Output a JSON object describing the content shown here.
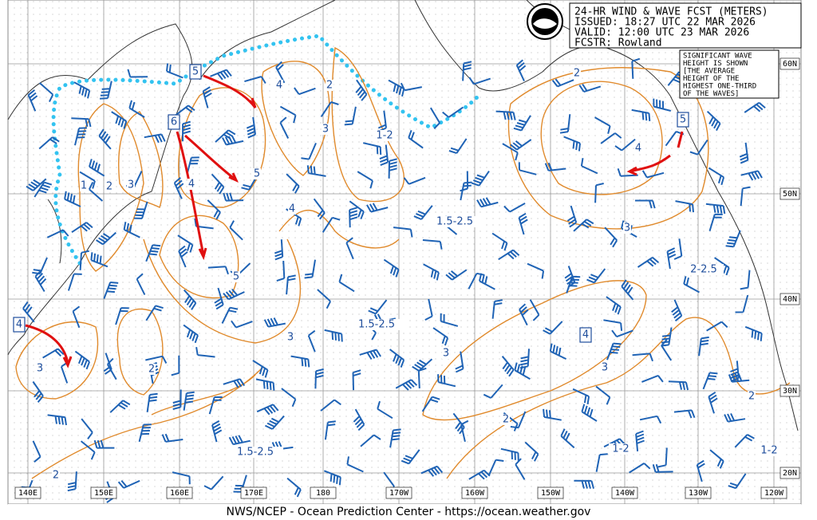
{
  "header": {
    "lines": [
      "24-HR WIND & WAVE FCST (METERS)",
      "ISSUED: 18:27 UTC 22 MAR 2026",
      "VALID: 12:00 UTC 23 MAR 2026",
      "FCSTR:  Rowland"
    ]
  },
  "note": {
    "lines": [
      "SIGNIFICANT WAVE",
      "HEIGHT IS SHOWN",
      "[THE AVERAGE",
      "HEIGHT OF THE",
      "HIGHEST ONE-THIRD",
      "OF THE WAVES]"
    ]
  },
  "latitude_labels": [
    "60N",
    "50N",
    "40N",
    "30N",
    "20N"
  ],
  "longitude_labels": [
    "140E",
    "150E",
    "160E",
    "170E",
    "180",
    "170W",
    "160W",
    "150W",
    "140W",
    "130W",
    "120W"
  ],
  "contour_labels": [
    "1",
    "2",
    "3",
    "4",
    "5",
    "4",
    "2",
    "3",
    "4",
    "5",
    "3",
    "2",
    "3",
    "2",
    "2",
    "4",
    "3",
    "3",
    "3",
    "2",
    "2"
  ],
  "region_labels": [
    "1-2",
    "1.5-2.5",
    "2-2.5",
    "1.5-2.5",
    "1.5-2.5",
    "1-2",
    "1-2"
  ],
  "centers": [
    "5",
    "6",
    "5",
    "4",
    "4"
  ],
  "footer": "NWS/NCEP - Ocean Prediction Center - https://ocean.weather.gov"
}
